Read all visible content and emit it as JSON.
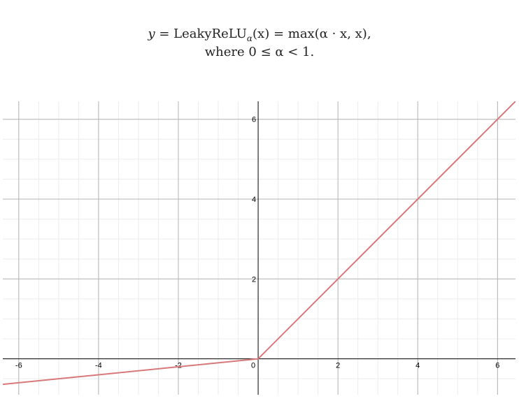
{
  "formula": {
    "y": "y",
    "eq1": " = LeakyReLU",
    "sub": "α",
    "arg": "(x)",
    "eq2": " = max(α · x, x),",
    "line2": "where 0 ≤ α < 1."
  },
  "chart_data": {
    "type": "line",
    "title": "",
    "xlabel": "",
    "ylabel": "",
    "xlim": [
      -6.4,
      6.45
    ],
    "ylim": [
      -0.9,
      6.45
    ],
    "grid": true,
    "minor_grid": true,
    "xticks": [
      -6,
      -4,
      -2,
      0,
      2,
      4,
      6
    ],
    "yticks": [
      2,
      4,
      6
    ],
    "tick_labels_x": [
      "-6",
      "-4",
      "-2",
      "0",
      "2",
      "4",
      "6"
    ],
    "tick_labels_y": [
      "2",
      "4",
      "6"
    ],
    "series": [
      {
        "color": "#d9787a",
        "alpha": 0.1,
        "x": [
          -6.4,
          0,
          6.45
        ],
        "y": [
          -0.64,
          0,
          6.45
        ]
      }
    ]
  }
}
